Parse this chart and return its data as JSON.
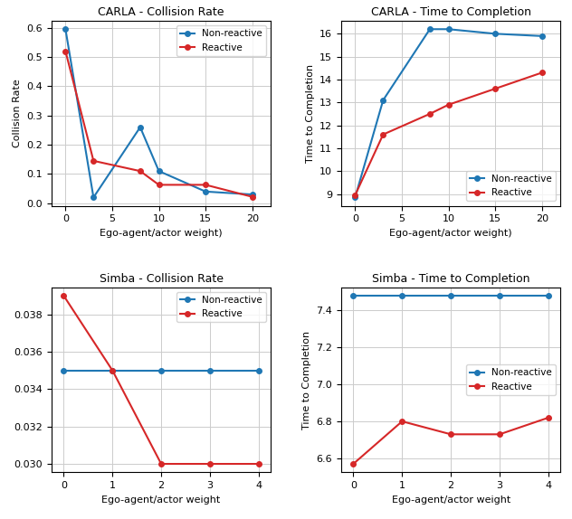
{
  "carla_collision": {
    "title": "CARLA - Collision Rate",
    "xlabel": "Ego-agent/actor weight)",
    "ylabel": "Collision Rate",
    "x": [
      0,
      3,
      8,
      10,
      15,
      20
    ],
    "non_reactive": [
      0.595,
      0.02,
      0.26,
      0.11,
      0.04,
      0.03
    ],
    "reactive": [
      0.52,
      0.145,
      0.11,
      0.063,
      0.063,
      0.022
    ]
  },
  "carla_time": {
    "title": "CARLA - Time to Completion",
    "xlabel": "Ego-agent/actor weight)",
    "ylabel": "Time to Completion",
    "x": [
      0,
      3,
      8,
      10,
      15,
      20
    ],
    "non_reactive": [
      8.85,
      13.1,
      16.2,
      16.2,
      16.0,
      15.9
    ],
    "reactive": [
      8.95,
      11.6,
      12.5,
      12.9,
      13.6,
      14.3
    ]
  },
  "simba_collision": {
    "title": "Simba - Collision Rate",
    "xlabel": "Ego-agent/actor weight",
    "ylabel": "",
    "x": [
      0,
      1,
      2,
      3,
      4
    ],
    "non_reactive": [
      0.035,
      0.035,
      0.035,
      0.035,
      0.035
    ],
    "reactive": [
      0.039,
      0.035,
      0.03,
      0.03,
      0.03
    ]
  },
  "simba_time": {
    "title": "Simba - Time to Completion",
    "xlabel": "Ego-agent/actor weight",
    "ylabel": "Time to Completion",
    "x": [
      0,
      1,
      2,
      3,
      4
    ],
    "non_reactive": [
      7.48,
      7.48,
      7.48,
      7.48,
      7.48
    ],
    "reactive": [
      6.57,
      6.8,
      6.73,
      6.73,
      6.82
    ]
  },
  "color_non_reactive": "#1f77b4",
  "color_reactive": "#d62728",
  "label_non_reactive": "Non-reactive",
  "label_reactive": "Reactive",
  "figsize": [
    6.32,
    5.74
  ],
  "dpi": 100
}
